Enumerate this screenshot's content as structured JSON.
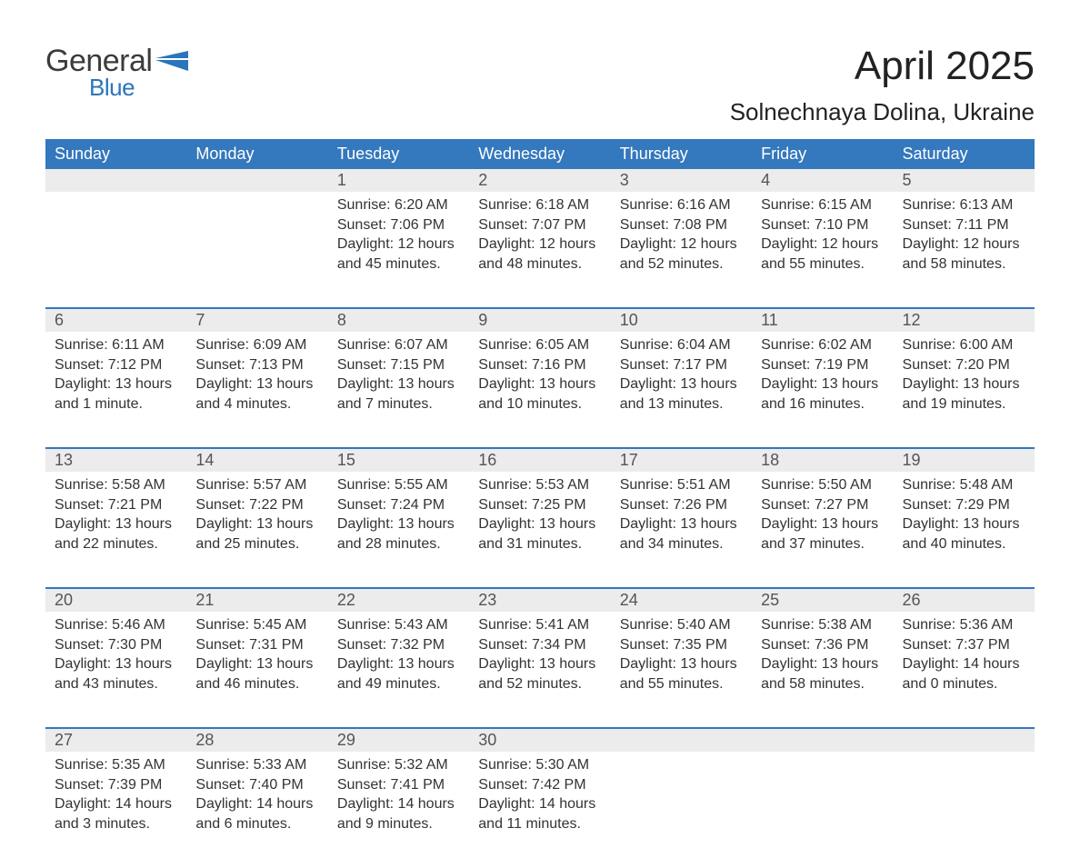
{
  "colors": {
    "header_blue": "#3478bd",
    "accent_blue": "#2a75bb",
    "daynum_bg": "#ececec",
    "text": "#333333",
    "bg": "#ffffff"
  },
  "typography": {
    "font_family": "Arial, Helvetica, sans-serif",
    "month_title_pt": 33,
    "location_pt": 20,
    "header_cell_pt": 14,
    "daynum_pt": 14,
    "body_pt": 12
  },
  "logo": {
    "word1": "General",
    "word2": "Blue"
  },
  "title": {
    "month": "April 2025",
    "location": "Solnechnaya Dolina, Ukraine"
  },
  "weekday_headers": [
    "Sunday",
    "Monday",
    "Tuesday",
    "Wednesday",
    "Thursday",
    "Friday",
    "Saturday"
  ],
  "weeks": [
    {
      "daynums": [
        "",
        "",
        "1",
        "2",
        "3",
        "4",
        "5"
      ],
      "cells": [
        null,
        null,
        {
          "sunrise": "Sunrise: 6:20 AM",
          "sunset": "Sunset: 7:06 PM",
          "daylight1": "Daylight: 12 hours",
          "daylight2": "and 45 minutes."
        },
        {
          "sunrise": "Sunrise: 6:18 AM",
          "sunset": "Sunset: 7:07 PM",
          "daylight1": "Daylight: 12 hours",
          "daylight2": "and 48 minutes."
        },
        {
          "sunrise": "Sunrise: 6:16 AM",
          "sunset": "Sunset: 7:08 PM",
          "daylight1": "Daylight: 12 hours",
          "daylight2": "and 52 minutes."
        },
        {
          "sunrise": "Sunrise: 6:15 AM",
          "sunset": "Sunset: 7:10 PM",
          "daylight1": "Daylight: 12 hours",
          "daylight2": "and 55 minutes."
        },
        {
          "sunrise": "Sunrise: 6:13 AM",
          "sunset": "Sunset: 7:11 PM",
          "daylight1": "Daylight: 12 hours",
          "daylight2": "and 58 minutes."
        }
      ]
    },
    {
      "daynums": [
        "6",
        "7",
        "8",
        "9",
        "10",
        "11",
        "12"
      ],
      "cells": [
        {
          "sunrise": "Sunrise: 6:11 AM",
          "sunset": "Sunset: 7:12 PM",
          "daylight1": "Daylight: 13 hours",
          "daylight2": "and 1 minute."
        },
        {
          "sunrise": "Sunrise: 6:09 AM",
          "sunset": "Sunset: 7:13 PM",
          "daylight1": "Daylight: 13 hours",
          "daylight2": "and 4 minutes."
        },
        {
          "sunrise": "Sunrise: 6:07 AM",
          "sunset": "Sunset: 7:15 PM",
          "daylight1": "Daylight: 13 hours",
          "daylight2": "and 7 minutes."
        },
        {
          "sunrise": "Sunrise: 6:05 AM",
          "sunset": "Sunset: 7:16 PM",
          "daylight1": "Daylight: 13 hours",
          "daylight2": "and 10 minutes."
        },
        {
          "sunrise": "Sunrise: 6:04 AM",
          "sunset": "Sunset: 7:17 PM",
          "daylight1": "Daylight: 13 hours",
          "daylight2": "and 13 minutes."
        },
        {
          "sunrise": "Sunrise: 6:02 AM",
          "sunset": "Sunset: 7:19 PM",
          "daylight1": "Daylight: 13 hours",
          "daylight2": "and 16 minutes."
        },
        {
          "sunrise": "Sunrise: 6:00 AM",
          "sunset": "Sunset: 7:20 PM",
          "daylight1": "Daylight: 13 hours",
          "daylight2": "and 19 minutes."
        }
      ]
    },
    {
      "daynums": [
        "13",
        "14",
        "15",
        "16",
        "17",
        "18",
        "19"
      ],
      "cells": [
        {
          "sunrise": "Sunrise: 5:58 AM",
          "sunset": "Sunset: 7:21 PM",
          "daylight1": "Daylight: 13 hours",
          "daylight2": "and 22 minutes."
        },
        {
          "sunrise": "Sunrise: 5:57 AM",
          "sunset": "Sunset: 7:22 PM",
          "daylight1": "Daylight: 13 hours",
          "daylight2": "and 25 minutes."
        },
        {
          "sunrise": "Sunrise: 5:55 AM",
          "sunset": "Sunset: 7:24 PM",
          "daylight1": "Daylight: 13 hours",
          "daylight2": "and 28 minutes."
        },
        {
          "sunrise": "Sunrise: 5:53 AM",
          "sunset": "Sunset: 7:25 PM",
          "daylight1": "Daylight: 13 hours",
          "daylight2": "and 31 minutes."
        },
        {
          "sunrise": "Sunrise: 5:51 AM",
          "sunset": "Sunset: 7:26 PM",
          "daylight1": "Daylight: 13 hours",
          "daylight2": "and 34 minutes."
        },
        {
          "sunrise": "Sunrise: 5:50 AM",
          "sunset": "Sunset: 7:27 PM",
          "daylight1": "Daylight: 13 hours",
          "daylight2": "and 37 minutes."
        },
        {
          "sunrise": "Sunrise: 5:48 AM",
          "sunset": "Sunset: 7:29 PM",
          "daylight1": "Daylight: 13 hours",
          "daylight2": "and 40 minutes."
        }
      ]
    },
    {
      "daynums": [
        "20",
        "21",
        "22",
        "23",
        "24",
        "25",
        "26"
      ],
      "cells": [
        {
          "sunrise": "Sunrise: 5:46 AM",
          "sunset": "Sunset: 7:30 PM",
          "daylight1": "Daylight: 13 hours",
          "daylight2": "and 43 minutes."
        },
        {
          "sunrise": "Sunrise: 5:45 AM",
          "sunset": "Sunset: 7:31 PM",
          "daylight1": "Daylight: 13 hours",
          "daylight2": "and 46 minutes."
        },
        {
          "sunrise": "Sunrise: 5:43 AM",
          "sunset": "Sunset: 7:32 PM",
          "daylight1": "Daylight: 13 hours",
          "daylight2": "and 49 minutes."
        },
        {
          "sunrise": "Sunrise: 5:41 AM",
          "sunset": "Sunset: 7:34 PM",
          "daylight1": "Daylight: 13 hours",
          "daylight2": "and 52 minutes."
        },
        {
          "sunrise": "Sunrise: 5:40 AM",
          "sunset": "Sunset: 7:35 PM",
          "daylight1": "Daylight: 13 hours",
          "daylight2": "and 55 minutes."
        },
        {
          "sunrise": "Sunrise: 5:38 AM",
          "sunset": "Sunset: 7:36 PM",
          "daylight1": "Daylight: 13 hours",
          "daylight2": "and 58 minutes."
        },
        {
          "sunrise": "Sunrise: 5:36 AM",
          "sunset": "Sunset: 7:37 PM",
          "daylight1": "Daylight: 14 hours",
          "daylight2": "and 0 minutes."
        }
      ]
    },
    {
      "daynums": [
        "27",
        "28",
        "29",
        "30",
        "",
        "",
        ""
      ],
      "cells": [
        {
          "sunrise": "Sunrise: 5:35 AM",
          "sunset": "Sunset: 7:39 PM",
          "daylight1": "Daylight: 14 hours",
          "daylight2": "and 3 minutes."
        },
        {
          "sunrise": "Sunrise: 5:33 AM",
          "sunset": "Sunset: 7:40 PM",
          "daylight1": "Daylight: 14 hours",
          "daylight2": "and 6 minutes."
        },
        {
          "sunrise": "Sunrise: 5:32 AM",
          "sunset": "Sunset: 7:41 PM",
          "daylight1": "Daylight: 14 hours",
          "daylight2": "and 9 minutes."
        },
        {
          "sunrise": "Sunrise: 5:30 AM",
          "sunset": "Sunset: 7:42 PM",
          "daylight1": "Daylight: 14 hours",
          "daylight2": "and 11 minutes."
        },
        null,
        null,
        null
      ]
    }
  ]
}
